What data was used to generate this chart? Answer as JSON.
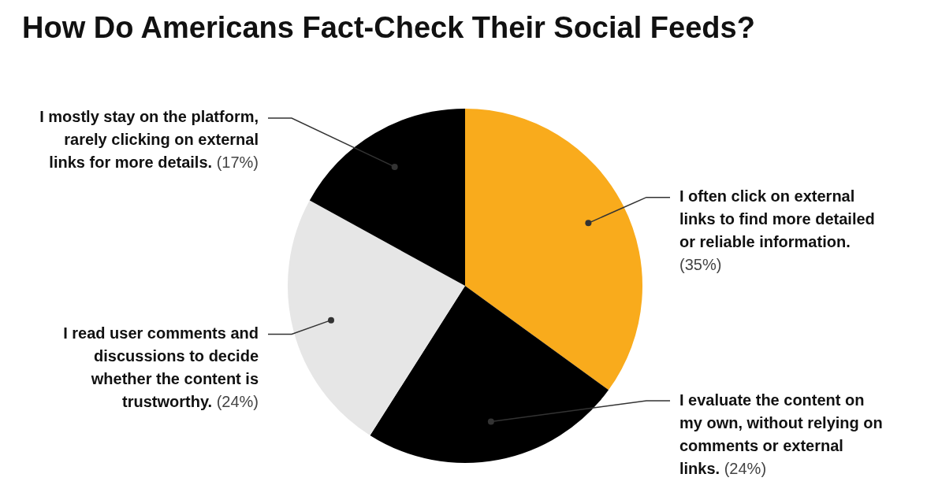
{
  "chart_data": {
    "type": "pie",
    "title": "How Do Americans Fact-Check Their Social Feeds?",
    "categories": [
      "I often click on external links to find more detailed or reliable information.",
      "I evaluate the content on my own, without relying on comments or external links.",
      "I read user comments and discussions to decide whether the content is trustworthy.",
      "I mostly stay on the platform, rarely clicking on external links for more details."
    ],
    "values": [
      35,
      24,
      24,
      17
    ],
    "colors": [
      "#f9ab1c",
      "#000000",
      "#e6e6e6",
      "#000000"
    ],
    "value_labels": [
      "(35%)",
      "(24%)",
      "(24%)",
      "(17%)"
    ]
  }
}
